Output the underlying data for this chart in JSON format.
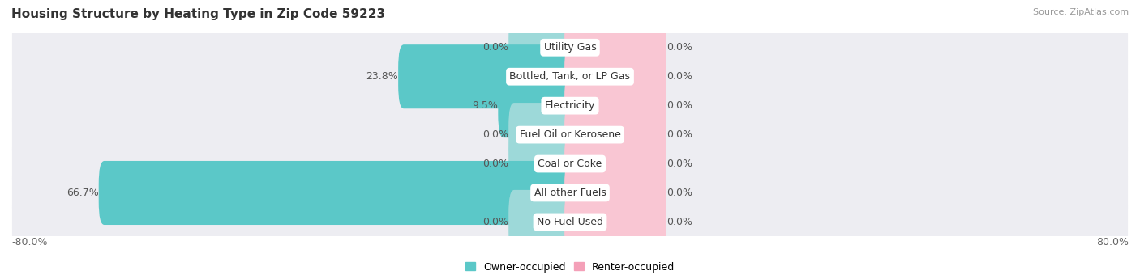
{
  "title": "Housing Structure by Heating Type in Zip Code 59223",
  "source": "Source: ZipAtlas.com",
  "categories": [
    "Utility Gas",
    "Bottled, Tank, or LP Gas",
    "Electricity",
    "Fuel Oil or Kerosene",
    "Coal or Coke",
    "All other Fuels",
    "No Fuel Used"
  ],
  "owner_values": [
    0.0,
    23.8,
    9.5,
    0.0,
    0.0,
    66.7,
    0.0
  ],
  "renter_values": [
    0.0,
    0.0,
    0.0,
    0.0,
    0.0,
    0.0,
    0.0
  ],
  "owner_color": "#5BC8C8",
  "renter_color": "#F4A0B8",
  "owner_stub_color": "#9DD9D9",
  "renter_stub_color": "#F9C6D3",
  "row_bg_color": "#EDEDF2",
  "row_bg_alt_color": "#E4E4EA",
  "xlim_left": -80.0,
  "xlim_right": 80.0,
  "stub_size": 8.0,
  "renter_fixed_size": 13.0,
  "title_fontsize": 11,
  "label_fontsize": 9,
  "value_fontsize": 9,
  "source_fontsize": 8,
  "legend_fontsize": 9
}
